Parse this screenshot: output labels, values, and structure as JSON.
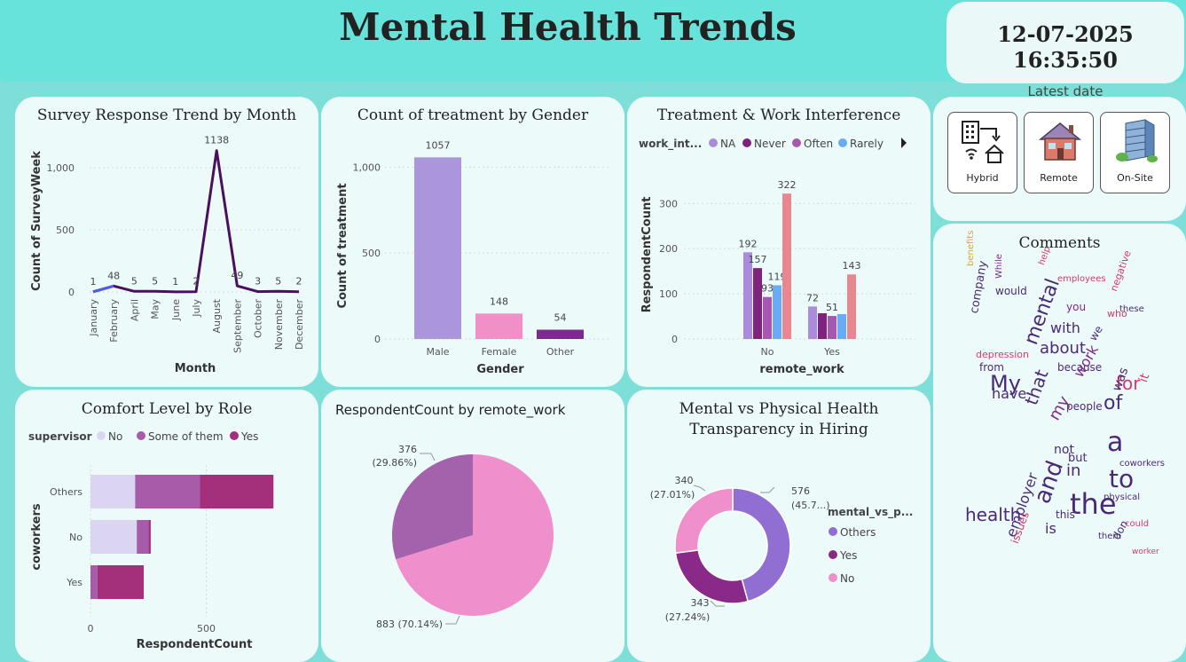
{
  "header": {
    "title": "Mental Health Trends",
    "date_value": "12-07-2025 16:35:50",
    "date_label": "Latest date"
  },
  "colors": {
    "background": "#7ddfd8",
    "card": "#ecfaf9",
    "line": "#4a0f5e",
    "line_start": "#4d5bf0",
    "male_bar": "#ab96dc",
    "female_bar": "#f18fc9",
    "other_bar": "#7b2b8e",
    "na": "#ab8bdc",
    "never": "#80237f",
    "often": "#a657b2",
    "rarely": "#6aabf5",
    "unlabeled": "#e8878f",
    "sup_no": "#dcd5f2",
    "sup_some": "#a65ca8",
    "sup_yes": "#a42f7b",
    "pie_a": "#a462ad",
    "pie_b": "#ef8fcc",
    "donut_others": "#906ed2",
    "donut_yes": "#8a2a88",
    "donut_no": "#ef8fcc"
  },
  "buttons": [
    {
      "label": "Hybrid",
      "icon": "hybrid-work-icon"
    },
    {
      "label": "Remote",
      "icon": "house-icon"
    },
    {
      "label": "On-Site",
      "icon": "office-building-icon"
    }
  ],
  "cards": {
    "trend_title": "Survey Response Trend by Month",
    "gender_title": "Count of treatment by Gender",
    "interference_title": "Treatment & Work Interference",
    "comments_title": "Comments",
    "comfort_title": "Comfort Level by Role",
    "remote_title": "RespondentCount by remote_work",
    "transparency_title": "Mental vs Physical Health Transparency in Hiring"
  },
  "chart_data": [
    {
      "id": "trend",
      "type": "line",
      "title": "Survey Response Trend by Month",
      "xlabel": "Month",
      "ylabel": "Count of SurveyWeek",
      "categories": [
        "January",
        "February",
        "April",
        "May",
        "June",
        "July",
        "August",
        "September",
        "October",
        "November",
        "December"
      ],
      "values": [
        1,
        48,
        5,
        5,
        1,
        2,
        1138,
        49,
        3,
        5,
        2
      ],
      "data_labels": [
        "1",
        "48",
        "5",
        "5",
        "1",
        "2",
        "1138",
        "49",
        "3",
        "5",
        "2"
      ],
      "yticks": [
        0,
        500,
        1000
      ],
      "ytick_labels": [
        "0",
        "500",
        "1,000"
      ],
      "ylim": [
        0,
        1200
      ]
    },
    {
      "id": "gender",
      "type": "bar",
      "title": "Count of treatment by Gender",
      "xlabel": "Gender",
      "ylabel": "Count of treatment",
      "categories": [
        "Male",
        "Female",
        "Other"
      ],
      "values": [
        1057,
        148,
        54
      ],
      "data_labels": [
        "1057",
        "148",
        "54"
      ],
      "yticks": [
        0,
        500,
        1000
      ],
      "ytick_labels": [
        "0",
        "500",
        "1,000"
      ],
      "ylim": [
        0,
        1100
      ]
    },
    {
      "id": "interference",
      "type": "bar",
      "title": "Treatment & Work Interference",
      "xlabel": "remote_work",
      "ylabel": "RespondentCount",
      "legend_title": "work_int...",
      "categories": [
        "No",
        "Yes"
      ],
      "series": [
        {
          "name": "NA",
          "values": [
            192,
            72
          ]
        },
        {
          "name": "Never",
          "values": [
            157,
            57
          ]
        },
        {
          "name": "Often",
          "values": [
            93,
            51
          ]
        },
        {
          "name": "Rarely",
          "values": [
            119,
            55
          ]
        },
        {
          "name": "",
          "values": [
            322,
            143
          ]
        }
      ],
      "data_labels": [
        [
          "192",
          "72"
        ],
        [
          "157",
          ""
        ],
        [
          "93",
          "51"
        ],
        [
          "119",
          ""
        ],
        [
          "322",
          "143"
        ]
      ],
      "yticks": [
        0,
        100,
        200,
        300
      ],
      "ytick_labels": [
        "0",
        "100",
        "200",
        "300"
      ],
      "ylim": [
        0,
        340
      ]
    },
    {
      "id": "comfort",
      "type": "bar",
      "orientation": "horizontal",
      "stacked": true,
      "title": "Comfort Level by Role",
      "xlabel": "RespondentCount",
      "ylabel": "coworkers",
      "legend_title": "supervisor",
      "categories": [
        "Others",
        "No",
        "Yes"
      ],
      "series": [
        {
          "name": "No",
          "values": [
            193,
            200,
            0
          ]
        },
        {
          "name": "Some of them",
          "values": [
            280,
            50,
            30
          ]
        },
        {
          "name": "Yes",
          "values": [
            317,
            10,
            200
          ]
        }
      ],
      "xticks": [
        0,
        500
      ],
      "xtick_labels": [
        "0",
        "500"
      ],
      "xlim": [
        0,
        900
      ]
    },
    {
      "id": "remote",
      "type": "pie",
      "title": "RespondentCount by remote_work",
      "slices": [
        {
          "value": 376,
          "label": "376",
          "pct": "(29.86%)"
        },
        {
          "value": 883,
          "label": "883 (70.14%)",
          "pct": ""
        }
      ]
    },
    {
      "id": "transparency",
      "type": "pie",
      "donut": true,
      "title": "Mental vs Physical Health Transparency in Hiring",
      "legend_title": "mental_vs_p...",
      "slices": [
        {
          "name": "Others",
          "value": 576,
          "label": "576",
          "pct": "(45.7...)"
        },
        {
          "name": "Yes",
          "value": 343,
          "label": "343",
          "pct": "(27.24%)"
        },
        {
          "name": "No",
          "value": 340,
          "label": "340",
          "pct": "(27.01%)"
        }
      ]
    }
  ],
  "wordcloud": [
    {
      "t": "benefits",
      "c": "#e2a23a",
      "s": 10
    },
    {
      "t": "While",
      "c": "#7d2a8d",
      "s": 10
    },
    {
      "t": "help",
      "c": "#d33a6c",
      "s": 10
    },
    {
      "t": "would",
      "c": "#4a2a78",
      "s": 12
    },
    {
      "t": "negative",
      "c": "#d33a6c",
      "s": 11
    },
    {
      "t": "employees",
      "c": "#d33a6c",
      "s": 10
    },
    {
      "t": "company",
      "c": "#4a2a78",
      "s": 13
    },
    {
      "t": "you",
      "c": "#7d2a8d",
      "s": 12
    },
    {
      "t": "with",
      "c": "#4a2a78",
      "s": 16
    },
    {
      "t": "who",
      "c": "#d33a6c",
      "s": 11
    },
    {
      "t": "these",
      "c": "#4a2a78",
      "s": 10
    },
    {
      "t": "mental",
      "c": "#4a2a78",
      "s": 22
    },
    {
      "t": "about",
      "c": "#4a2a78",
      "s": 18
    },
    {
      "t": "we",
      "c": "#4a2a78",
      "s": 12
    },
    {
      "t": "depression",
      "c": "#d33a6c",
      "s": 11
    },
    {
      "t": "from",
      "c": "#4a2a78",
      "s": 12
    },
    {
      "t": "because",
      "c": "#4a2a78",
      "s": 12
    },
    {
      "t": "My",
      "c": "#4a2a78",
      "s": 24
    },
    {
      "t": "work",
      "c": "#7d2a8d",
      "s": 16
    },
    {
      "t": "for",
      "c": "#d33a6c",
      "s": 20
    },
    {
      "t": "have",
      "c": "#4a2a78",
      "s": 16
    },
    {
      "t": "that",
      "c": "#4a2a78",
      "s": 20
    },
    {
      "t": "of",
      "c": "#4a2a78",
      "s": 22
    },
    {
      "t": "people",
      "c": "#4a2a78",
      "s": 12
    },
    {
      "t": "was",
      "c": "#4a2a78",
      "s": 14
    },
    {
      "t": "it",
      "c": "#d33a6c",
      "s": 14
    },
    {
      "t": "my",
      "c": "#7d2a8d",
      "s": 18
    },
    {
      "t": "not",
      "c": "#4a2a78",
      "s": 14
    },
    {
      "t": "a",
      "c": "#4a2a78",
      "s": 30
    },
    {
      "t": "but",
      "c": "#4a2a78",
      "s": 13
    },
    {
      "t": "in",
      "c": "#4a2a78",
      "s": 18
    },
    {
      "t": "to",
      "c": "#4a2a78",
      "s": 28
    },
    {
      "t": "coworkers",
      "c": "#4a2a78",
      "s": 10
    },
    {
      "t": "health",
      "c": "#4a2a78",
      "s": 20
    },
    {
      "t": "and",
      "c": "#4a2a78",
      "s": 26
    },
    {
      "t": "the",
      "c": "#4a2a78",
      "s": 32
    },
    {
      "t": "employer",
      "c": "#4a2a78",
      "s": 16
    },
    {
      "t": "is",
      "c": "#4a2a78",
      "s": 16
    },
    {
      "t": "this",
      "c": "#4a2a78",
      "s": 12
    },
    {
      "t": "issues",
      "c": "#d33a6c",
      "s": 12
    },
    {
      "t": "physical",
      "c": "#4a2a78",
      "s": 10
    },
    {
      "t": "could",
      "c": "#d33a6c",
      "s": 10
    },
    {
      "t": "don",
      "c": "#4a2a78",
      "s": 12
    },
    {
      "t": "worker",
      "c": "#d33a6c",
      "s": 9
    },
    {
      "t": "them",
      "c": "#4a2a78",
      "s": 10
    }
  ]
}
